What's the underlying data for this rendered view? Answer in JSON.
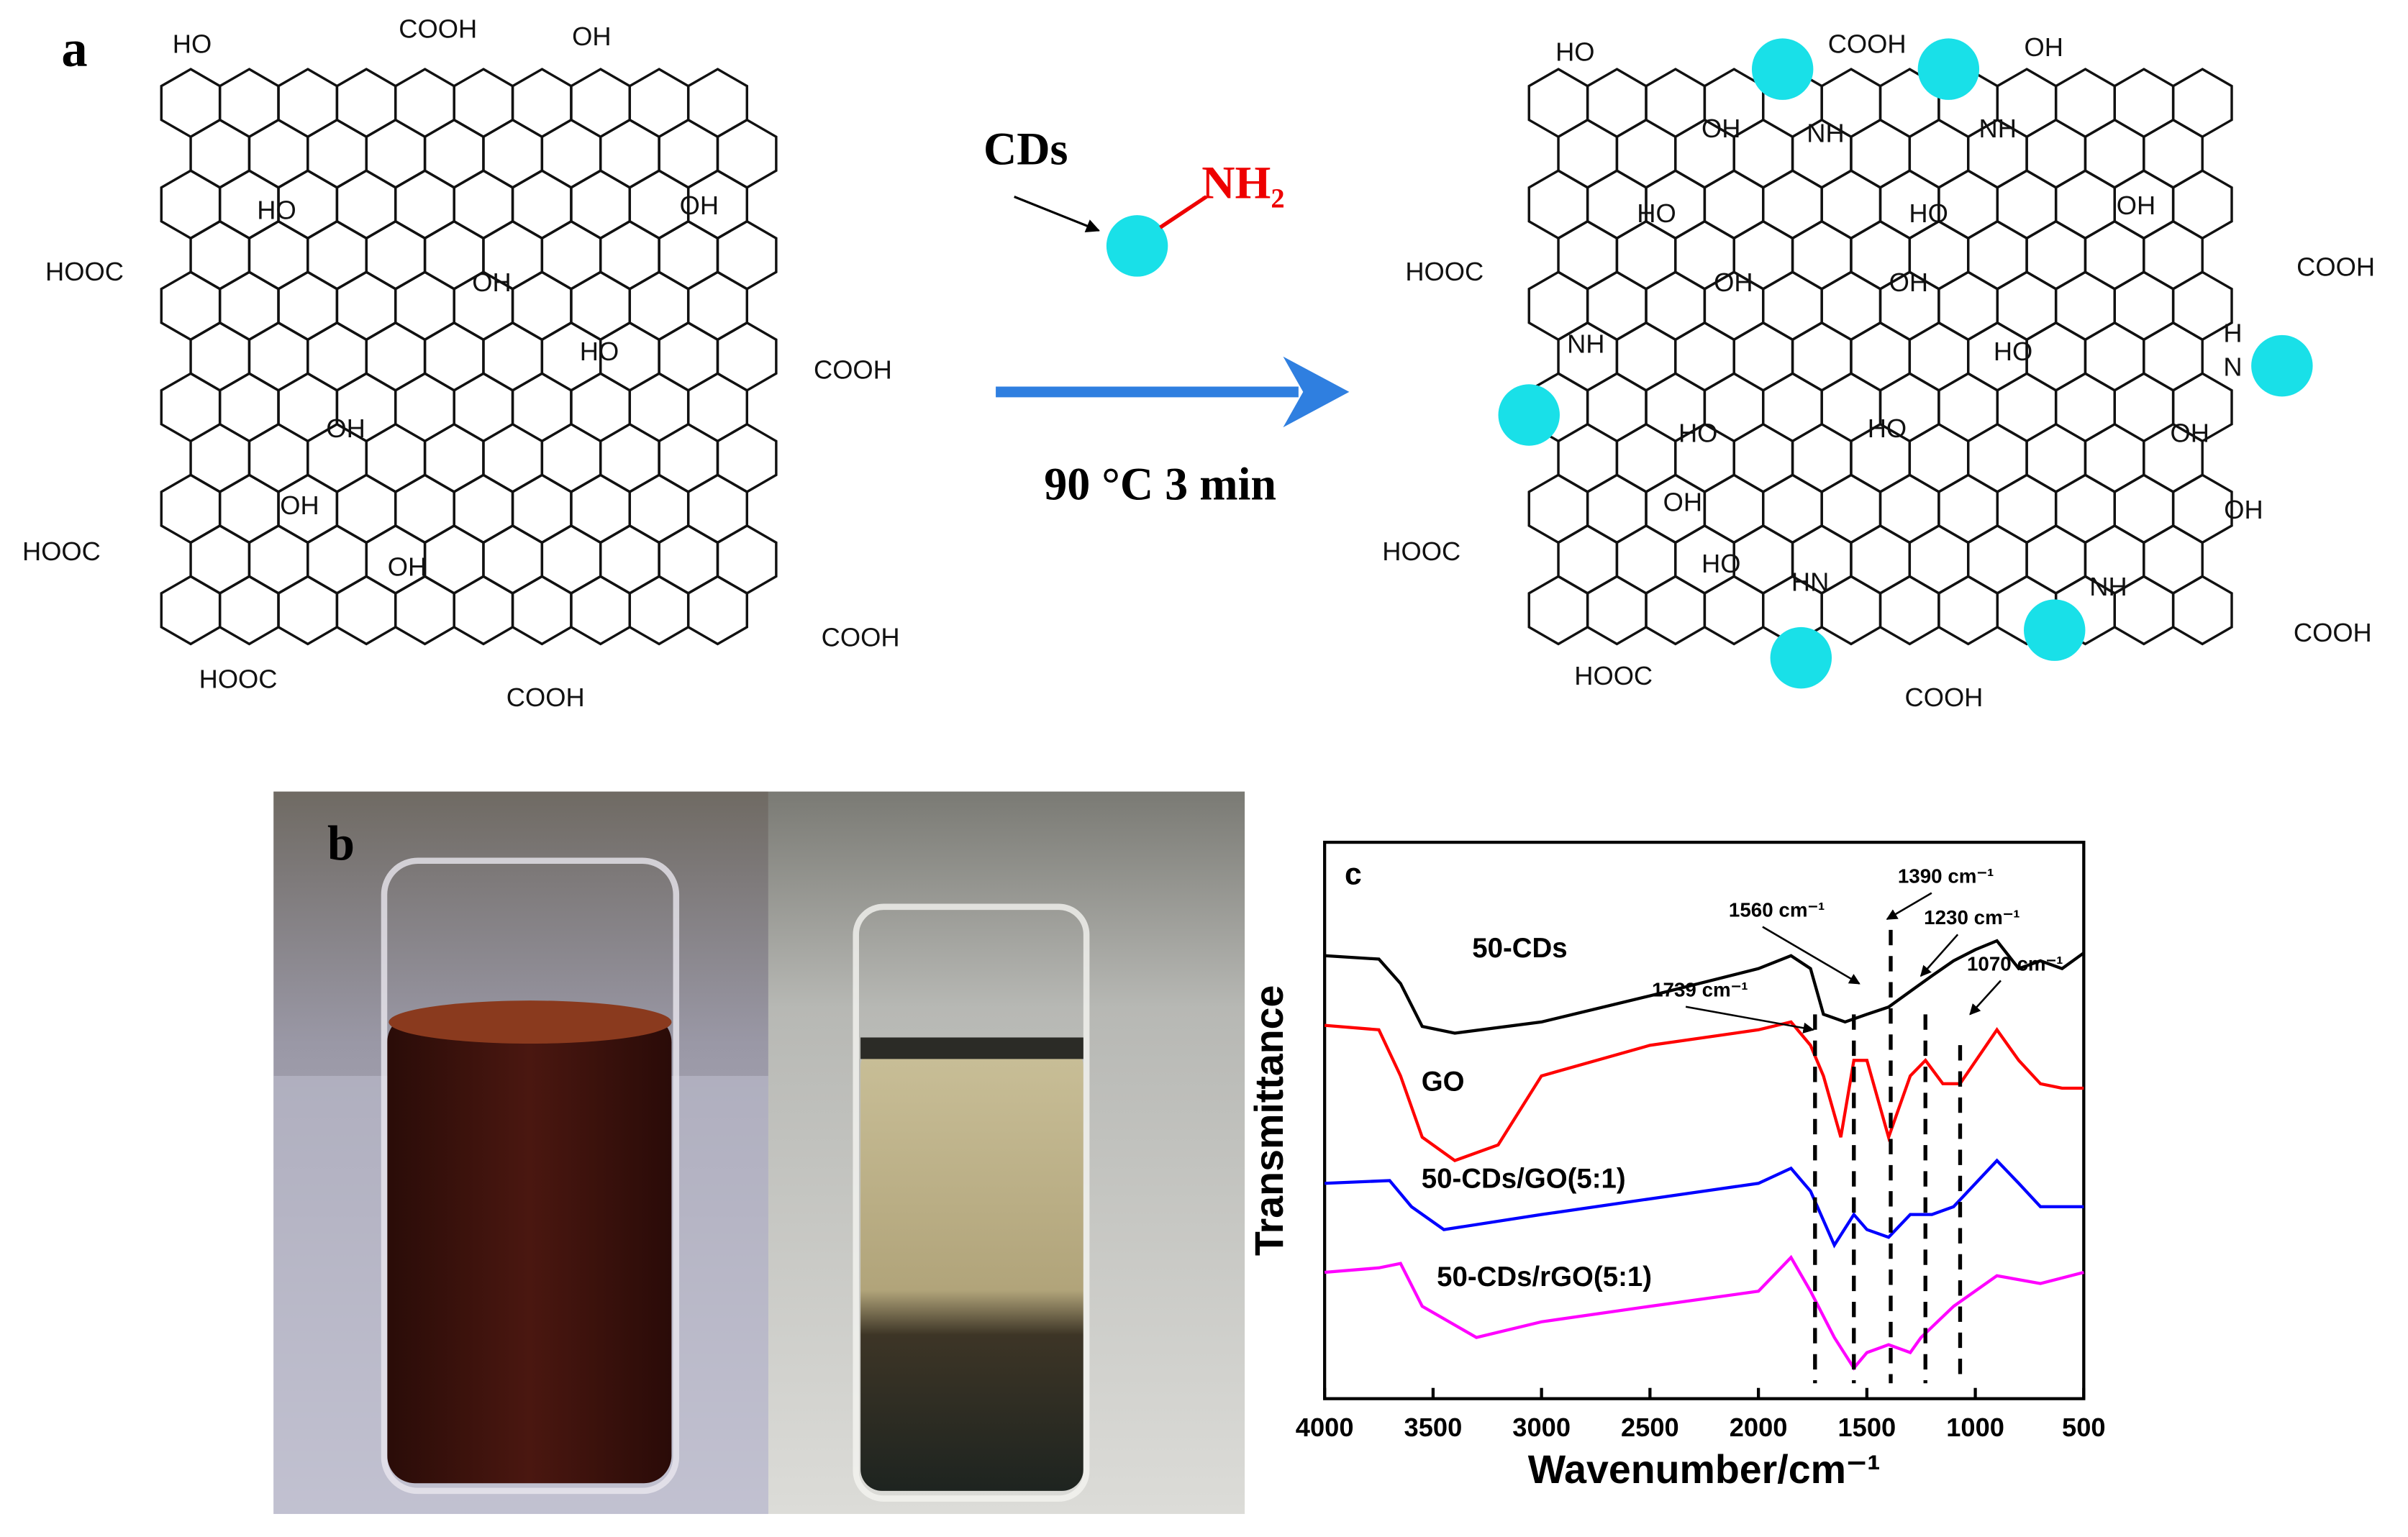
{
  "panel_a": {
    "label": "a",
    "reagent": "CDs",
    "amine": "NH₂",
    "condition": "90 °C 3 min",
    "left_groups": [
      "HO",
      "COOH",
      "OH",
      "HOOC",
      "COOH",
      "HOOC",
      "COOH",
      "HOOC",
      "COOH",
      "HO",
      "OH",
      "OH",
      "HO",
      "OH",
      "OH",
      "OH"
    ],
    "right_groups": [
      "HO",
      "COOH",
      "OH",
      "OH",
      "NH",
      "NH",
      "HOOC",
      "COOH",
      "HO",
      "OH",
      "HO",
      "OH",
      "OH",
      "NH",
      "H",
      "N",
      "HO",
      "HO",
      "HO",
      "OH",
      "OH",
      "OH",
      "HOOC",
      "HO",
      "HN",
      "NH",
      "COOH",
      "HOOC",
      "COOH"
    ]
  },
  "panel_b": {
    "label": "b"
  },
  "chart_data": {
    "type": "line",
    "label": "c",
    "xlabel": "Wavenumber/cm⁻¹",
    "ylabel": "Transmittance",
    "xlim": [
      4000,
      500
    ],
    "ylim": [
      0,
      100
    ],
    "xticks": [
      4000,
      3500,
      3000,
      2500,
      2000,
      1500,
      1000,
      500
    ],
    "series": [
      {
        "name": "50-CDs",
        "color": "#000000",
        "x": [
          4000,
          3750,
          3650,
          3550,
          3400,
          3000,
          2500,
          2000,
          1850,
          1760,
          1700,
          1600,
          1500,
          1400,
          1300,
          1200,
          1100,
          1000,
          900,
          800,
          700,
          600,
          500
        ],
        "values": [
          79.6,
          79,
          74.6,
          66.9,
          65.7,
          67.7,
          72.4,
          77.3,
          79.6,
          77.3,
          69.1,
          67.7,
          69.1,
          70.4,
          73.2,
          76,
          78.7,
          80.7,
          82.3,
          77.3,
          78.7,
          77.3,
          80.1
        ]
      },
      {
        "name": "GO",
        "color": "#ff0000",
        "x": [
          4000,
          3750,
          3650,
          3550,
          3400,
          3200,
          3000,
          2500,
          2000,
          1850,
          1760,
          1700,
          1620,
          1560,
          1500,
          1400,
          1300,
          1230,
          1150,
          1070,
          900,
          800,
          700,
          600,
          500
        ],
        "values": [
          67.1,
          66.3,
          58,
          47,
          42.8,
          45.6,
          58,
          63.5,
          66.3,
          67.7,
          63.5,
          58,
          47,
          60.8,
          60.8,
          47,
          58,
          60.8,
          56.6,
          56.6,
          66.3,
          60.8,
          56.6,
          55.8,
          55.8
        ]
      },
      {
        "name": "50-CDs/GO(5:1)",
        "color": "#0000ff",
        "x": [
          4000,
          3700,
          3600,
          3450,
          3000,
          2500,
          2000,
          1850,
          1760,
          1650,
          1560,
          1500,
          1400,
          1300,
          1200,
          1100,
          900,
          800,
          700,
          500
        ],
        "values": [
          38.7,
          39.2,
          34.5,
          30.4,
          33.1,
          35.9,
          38.7,
          41.4,
          37.3,
          27.6,
          33.1,
          30.4,
          29,
          33.1,
          33.1,
          34.5,
          42.8,
          38.7,
          34.5,
          34.5
        ]
      },
      {
        "name": "50-CDs/rGO(5:1)",
        "color": "#ff00ff",
        "x": [
          4000,
          3750,
          3650,
          3550,
          3300,
          3000,
          2500,
          2000,
          1850,
          1760,
          1650,
          1560,
          1500,
          1400,
          1300,
          1250,
          1100,
          900,
          700,
          500
        ],
        "values": [
          22.7,
          23.5,
          24.3,
          16.6,
          11,
          13.8,
          16.6,
          19.3,
          25.4,
          19.3,
          11,
          5.5,
          8.3,
          9.7,
          8.3,
          11,
          16.6,
          22.1,
          20.7,
          22.7
        ]
      }
    ],
    "peaks": [
      {
        "value": 1739,
        "label": "1739 cm⁻¹"
      },
      {
        "value": 1560,
        "label": "1560 cm⁻¹"
      },
      {
        "value": 1390,
        "label": "1390 cm⁻¹"
      },
      {
        "value": 1230,
        "label": "1230 cm⁻¹"
      },
      {
        "value": 1070,
        "label": "1070 cm⁻¹"
      }
    ]
  }
}
